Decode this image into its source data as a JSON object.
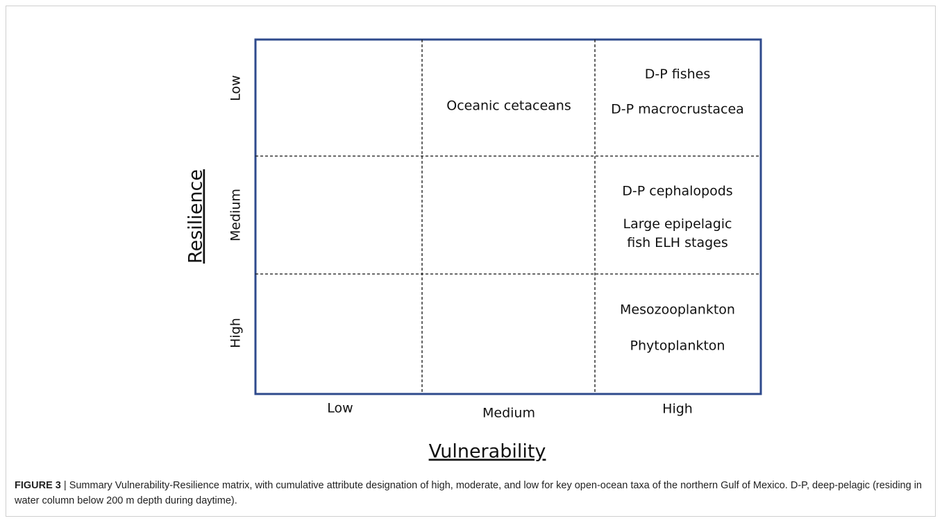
{
  "figure": {
    "y_axis": {
      "title": "Resilience",
      "labels": [
        "Low",
        "Medium",
        "High"
      ]
    },
    "x_axis": {
      "title": "Vulnerability",
      "labels": [
        "Low",
        "Medium",
        "High"
      ]
    },
    "cells": [
      {
        "row": 0,
        "col": 1,
        "items": [
          [
            "Oceanic cetaceans"
          ]
        ]
      },
      {
        "row": 0,
        "col": 2,
        "items": [
          [
            "D-P fishes"
          ],
          [
            "D-P macrocrustacea"
          ]
        ]
      },
      {
        "row": 1,
        "col": 2,
        "items": [
          [
            "D-P cephalopods"
          ],
          [
            "Large epipelagic",
            "fish ELH stages"
          ]
        ]
      },
      {
        "row": 2,
        "col": 2,
        "items": [
          [
            "Mesozooplankton"
          ],
          [
            "Phytoplankton"
          ]
        ]
      }
    ],
    "caption": {
      "label": "FIGURE 3",
      "text": "| Summary Vulnerability-Resilience matrix, with cumulative attribute designation of high, moderate, and low for key open-ocean taxa of the northern Gulf of Mexico. D-P, deep-pelagic (residing in water column below 200 m depth during daytime)."
    }
  }
}
